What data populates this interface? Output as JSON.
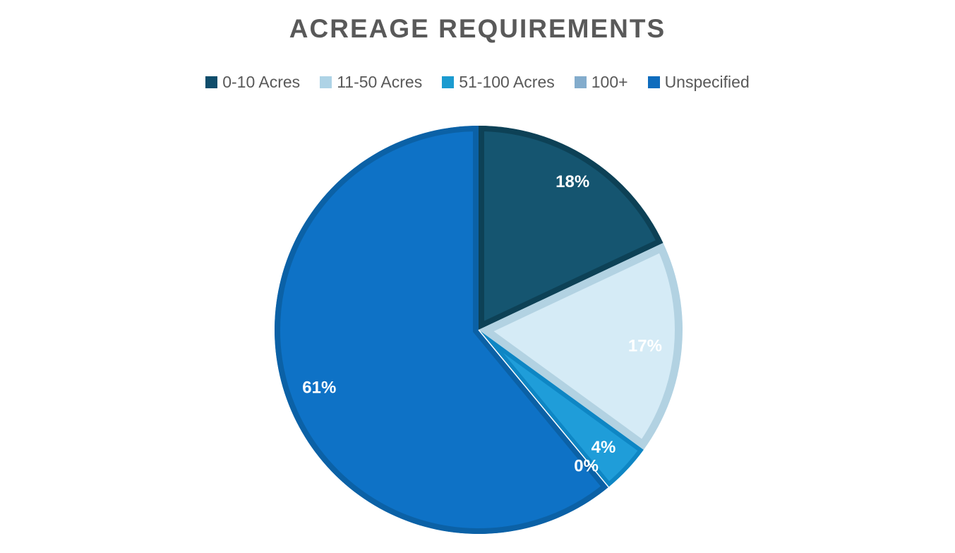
{
  "title": "ACREAGE REQUIREMENTS",
  "colors": {
    "background": "#ffffff",
    "title_text": "#595959",
    "legend_text": "#595959",
    "slice_label_text": "#ffffff",
    "zero_slice_line": "#ffffff"
  },
  "chart_data": {
    "type": "pie",
    "title": "ACREAGE REQUIREMENTS",
    "unit": "percent",
    "start_angle_deg": 0,
    "direction": "clockwise",
    "legend_position": "top",
    "grid": false,
    "categories": [
      "0-10 Acres",
      "11-50 Acres",
      "51-100 Acres",
      "100+",
      "Unspecified"
    ],
    "values": [
      18,
      17,
      4,
      0,
      61
    ],
    "series": [
      {
        "name": "0-10 Acres",
        "value": 18,
        "label": "18%",
        "fill": "#155570",
        "border": "#0d4156",
        "legend_color": "#0f4d6b",
        "border_width": 8,
        "label_radius": 0.86,
        "label_angle_offset": 0
      },
      {
        "name": "11-50 Acres",
        "value": 17,
        "label": "17%",
        "fill": "#d5ebf6",
        "border": "#b2d2e2",
        "legend_color": "#aed3e6",
        "border_width": 11,
        "label_radius": 0.82,
        "label_angle_offset": 0
      },
      {
        "name": "51-100 Acres",
        "value": 4,
        "label": "4%",
        "fill": "#1f9dd9",
        "border": "#0e86c4",
        "legend_color": "#1b9bd0",
        "border_width": 6,
        "label_radius": 0.84,
        "label_angle_offset": 0
      },
      {
        "name": "100+",
        "value": 0,
        "label": "0%",
        "fill": "#ffffff",
        "border": "#ffffff",
        "legend_color": "#83accc",
        "border_width": 1.5,
        "label_radius": 0.85,
        "label_angle_offset": 1.2
      },
      {
        "name": "Unspecified",
        "value": 61,
        "label": "61%",
        "fill": "#0e72c6",
        "border": "#0b61a6",
        "legend_color": "#0f6cbd",
        "border_width": 8,
        "label_radius": 0.83,
        "label_angle_offset": 0
      }
    ]
  }
}
